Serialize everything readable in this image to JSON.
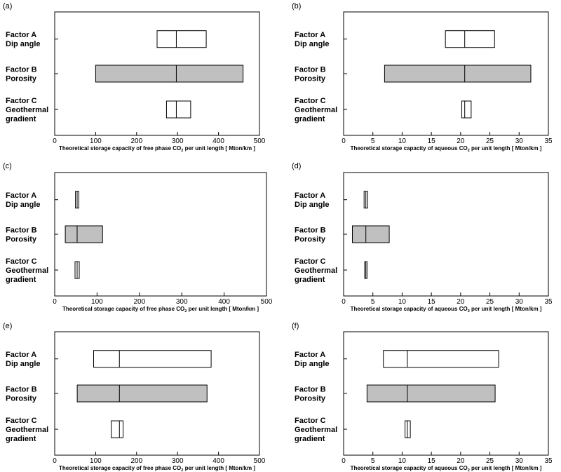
{
  "chart_data": [
    {
      "panel": "(a)",
      "type": "bar",
      "xlabel_parts": [
        "Theoretical storage capacity of free phase CO",
        "2",
        " per unit length [ Mton/km ]"
      ],
      "xlim": [
        0,
        500
      ],
      "xticks": [
        0,
        100,
        200,
        300,
        400,
        500
      ],
      "factors": [
        {
          "label_lines": [
            "Factor A",
            "Dip angle"
          ],
          "low": 250,
          "base": 297,
          "high": 370,
          "fill": "#ffffff"
        },
        {
          "label_lines": [
            "Factor B",
            "Porosity"
          ],
          "low": 100,
          "base": 297,
          "high": 460,
          "fill": "#c0c0c0"
        },
        {
          "label_lines": [
            "Factor C",
            "Geothermal",
            "gradient"
          ],
          "low": 273,
          "base": 297,
          "high": 332,
          "fill": "#ffffff"
        }
      ]
    },
    {
      "panel": "(b)",
      "type": "bar",
      "xlabel_parts": [
        "Theoretical storage capacity of aqueous CO",
        "2",
        " per unit length [ Mton/km ]"
      ],
      "xlim": [
        0,
        35
      ],
      "xticks": [
        0,
        5,
        10,
        15,
        20,
        25,
        30,
        35
      ],
      "factors": [
        {
          "label_lines": [
            "Factor A",
            "Dip angle"
          ],
          "low": 17.4,
          "base": 20.7,
          "high": 25.8,
          "fill": "#ffffff"
        },
        {
          "label_lines": [
            "Factor B",
            "Porosity"
          ],
          "low": 7.0,
          "base": 20.7,
          "high": 32.0,
          "fill": "#c0c0c0"
        },
        {
          "label_lines": [
            "Factor C",
            "Geothermal",
            "gradient"
          ],
          "low": 20.2,
          "base": 20.7,
          "high": 21.8,
          "fill": "#ffffff"
        }
      ]
    },
    {
      "panel": "(c)",
      "type": "bar",
      "xlabel_parts": [
        "Theoretical storage capacity of free phase CO",
        "2",
        " per unit length [ Mton/km ]"
      ],
      "xlim": [
        0,
        500
      ],
      "xticks": [
        0,
        100,
        200,
        300,
        400,
        500
      ],
      "factors": [
        {
          "label_lines": [
            "Factor A",
            "Dip angle"
          ],
          "low": 49,
          "base": 53,
          "high": 57,
          "fill": "#ffffff"
        },
        {
          "label_lines": [
            "Factor B",
            "Porosity"
          ],
          "low": 25,
          "base": 53,
          "high": 113,
          "fill": "#c0c0c0"
        },
        {
          "label_lines": [
            "Factor C",
            "Geothermal",
            "gradient"
          ],
          "low": 48,
          "base": 53,
          "high": 58,
          "fill": "#ffffff"
        }
      ]
    },
    {
      "panel": "(d)",
      "type": "bar",
      "xlabel_parts": [
        "Theoretical storage capacity of aqueous CO",
        "2",
        " per unit length [ Mton/km ]"
      ],
      "xlim": [
        0,
        35
      ],
      "xticks": [
        0,
        5,
        10,
        15,
        20,
        25,
        30,
        35
      ],
      "factors": [
        {
          "label_lines": [
            "Factor A",
            "Dip angle"
          ],
          "low": 3.5,
          "base": 3.8,
          "high": 4.1,
          "fill": "#ffffff"
        },
        {
          "label_lines": [
            "Factor B",
            "Porosity"
          ],
          "low": 1.5,
          "base": 3.8,
          "high": 7.8,
          "fill": "#c0c0c0"
        },
        {
          "label_lines": [
            "Factor C",
            "Geothermal",
            "gradient"
          ],
          "low": 3.6,
          "base": 3.8,
          "high": 4.0,
          "fill": "#ffffff"
        }
      ]
    },
    {
      "panel": "(e)",
      "type": "bar",
      "xlabel_parts": [
        "Theoretical storage capacity of free phase CO",
        "2",
        " per unit length [ Mton/km ]"
      ],
      "xlim": [
        0,
        500
      ],
      "xticks": [
        0,
        100,
        200,
        300,
        400,
        500
      ],
      "factors": [
        {
          "label_lines": [
            "Factor A",
            "Dip angle"
          ],
          "low": 95,
          "base": 158,
          "high": 382,
          "fill": "#ffffff"
        },
        {
          "label_lines": [
            "Factor B",
            "Porosity"
          ],
          "low": 55,
          "base": 158,
          "high": 372,
          "fill": "#c0c0c0"
        },
        {
          "label_lines": [
            "Factor C",
            "Geothermal",
            "gradient"
          ],
          "low": 138,
          "base": 158,
          "high": 167,
          "fill": "#ffffff"
        }
      ]
    },
    {
      "panel": "(f)",
      "type": "bar",
      "xlabel_parts": [
        "Theoretical storage capacity of aqueous CO",
        "2",
        " per unit length [ Mton/km ]"
      ],
      "xlim": [
        0,
        35
      ],
      "xticks": [
        0,
        5,
        10,
        15,
        20,
        25,
        30,
        35
      ],
      "factors": [
        {
          "label_lines": [
            "Factor A",
            "Dip angle"
          ],
          "low": 6.8,
          "base": 10.9,
          "high": 26.5,
          "fill": "#ffffff"
        },
        {
          "label_lines": [
            "Factor B",
            "Porosity"
          ],
          "low": 4.0,
          "base": 10.9,
          "high": 25.9,
          "fill": "#c0c0c0"
        },
        {
          "label_lines": [
            "Factor C",
            "Geothermal",
            "gradient"
          ],
          "low": 10.5,
          "base": 10.9,
          "high": 11.4,
          "fill": "#ffffff"
        }
      ]
    }
  ]
}
